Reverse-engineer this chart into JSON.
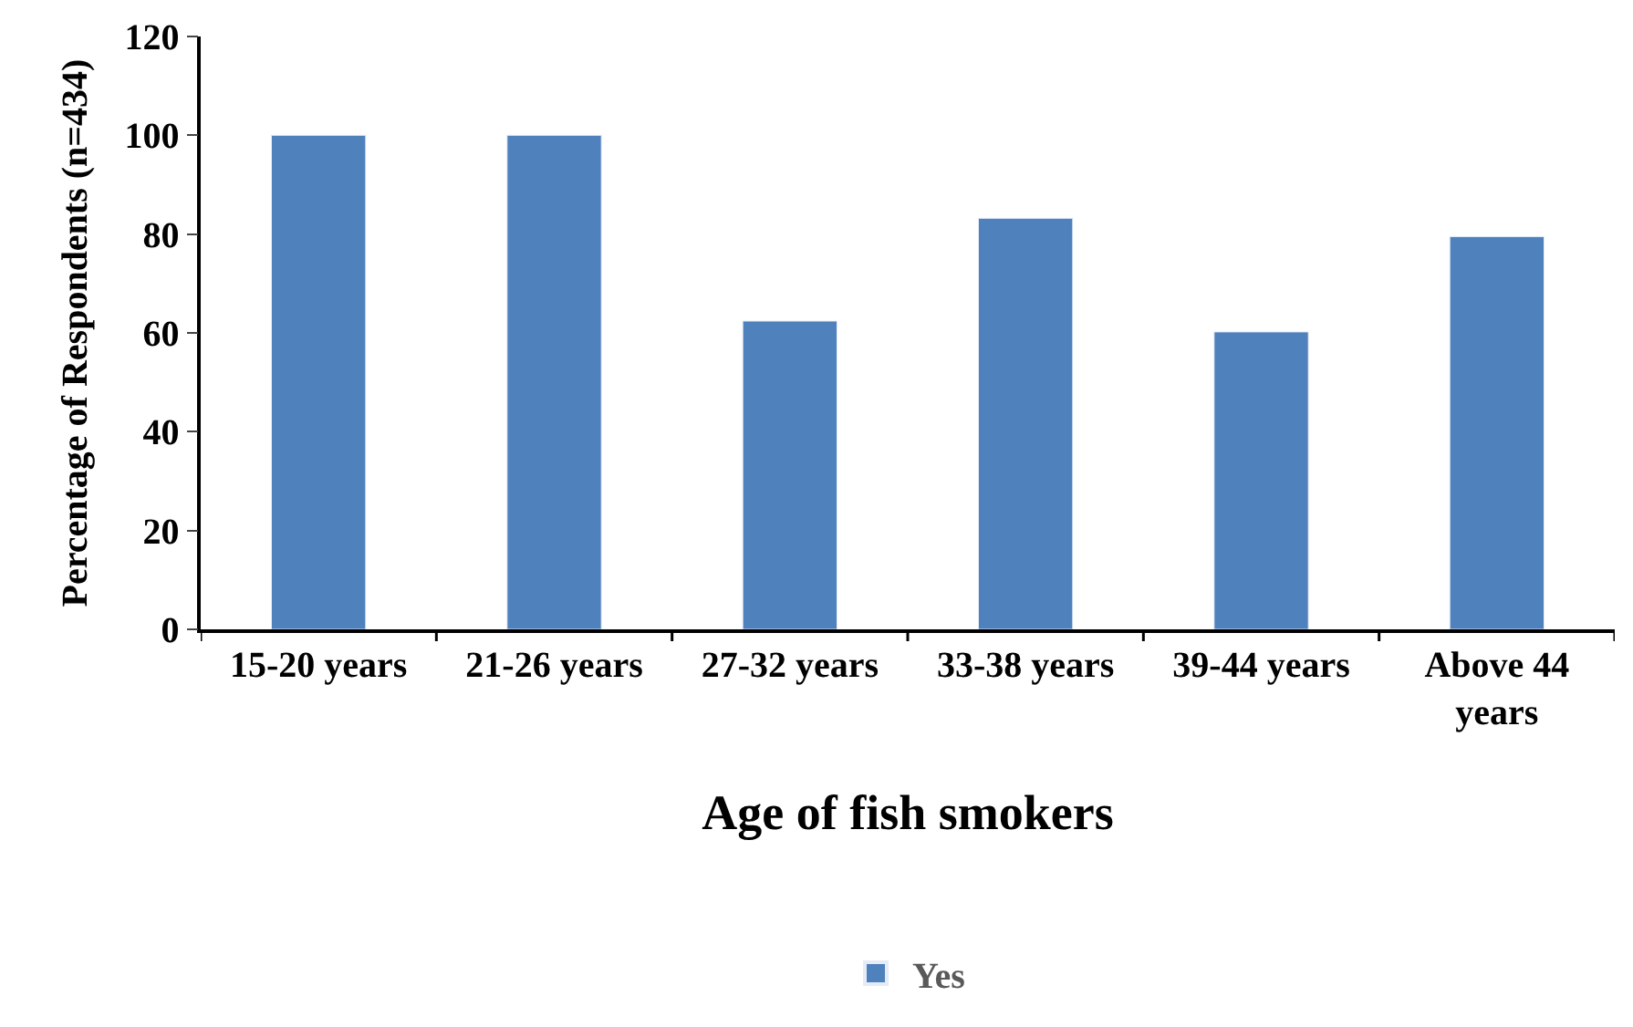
{
  "chart_data": {
    "type": "bar",
    "xlabel": "Age of fish smokers",
    "ylabel": "Percentage of Respondents (n=434)",
    "categories": [
      "15-20 years",
      "21-26 years",
      "27-32 years",
      "33-38 years",
      "39-44 years",
      "Above 44 years"
    ],
    "series": [
      {
        "name": "Yes",
        "color": "#4f81bd",
        "values": [
          100,
          100,
          62.4,
          83.2,
          60.2,
          79.5
        ]
      }
    ],
    "ylim": [
      0,
      120
    ],
    "yticks": [
      0,
      20,
      40,
      60,
      80,
      100,
      120
    ],
    "legend": "bottom"
  }
}
